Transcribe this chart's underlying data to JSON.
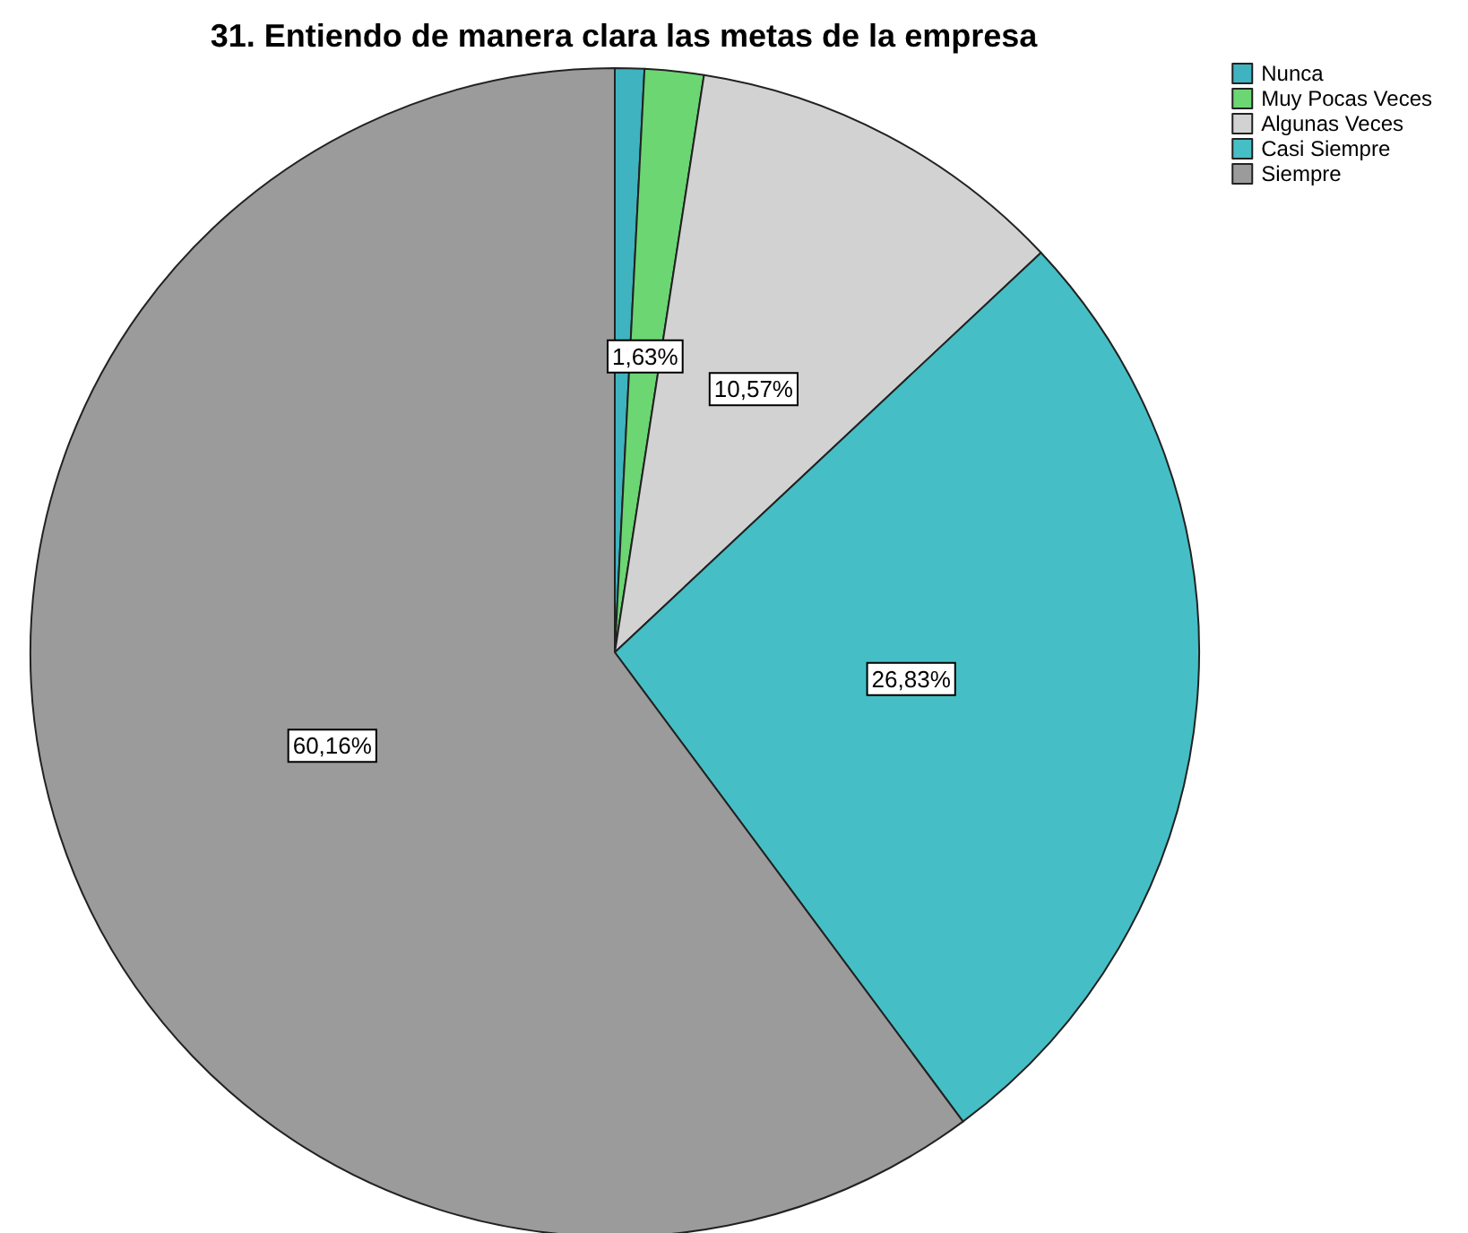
{
  "chart_data": {
    "type": "pie",
    "title": "31. Entiendo de manera clara las metas de la empresa",
    "categories": [
      "Nunca",
      "Muy Pocas Veces",
      "Algunas Veces",
      "Casi Siempre",
      "Siempre"
    ],
    "values": [
      0.81,
      1.63,
      10.57,
      26.83,
      60.16
    ],
    "value_labels": [
      null,
      "1,63%",
      "10,57%",
      "26,83%",
      "60,16%"
    ],
    "colors": [
      "#3fb3bf",
      "#6cd672",
      "#d2d2d2",
      "#45bfc5",
      "#9b9b9b"
    ],
    "legend": "top right"
  }
}
